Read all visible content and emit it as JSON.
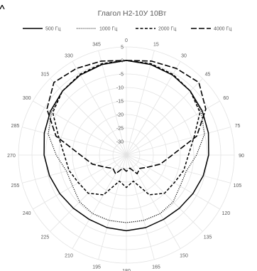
{
  "chart_data": {
    "type": "radar",
    "title": "Глагол Н2-10У 10Вт",
    "angle_labels": [
      "0",
      "15",
      "30",
      "45",
      "60",
      "75",
      "90",
      "105",
      "120",
      "135",
      "150",
      "165",
      "180",
      "195",
      "210",
      "225",
      "240",
      "255",
      "270",
      "285",
      "300",
      "315",
      "330",
      "345"
    ],
    "radial_ticks": [
      "5",
      "0",
      "-5",
      "-10",
      "-15",
      "-20",
      "-25",
      "-30"
    ],
    "r_range": [
      -35,
      5
    ],
    "grid": true,
    "legend_position": "top",
    "series": [
      {
        "name": "500 Гц",
        "line_style": "solid",
        "color": "#000000",
        "values": [
          0,
          -0.3,
          -0.8,
          -1.5,
          -2.5,
          -3.5,
          -4.5,
          -5.5,
          -6.5,
          -7.2,
          -7.5,
          -7.2,
          -7.0,
          -7.2,
          -7.5,
          -7.2,
          -6.5,
          -5.5,
          -4.5,
          -3.5,
          -2.5,
          -1.5,
          -0.8,
          -0.3
        ]
      },
      {
        "name": "1000 Гц",
        "line_style": "dotted",
        "color": "#000000",
        "values": [
          0,
          -0.3,
          -0.8,
          -1.5,
          -3,
          -5,
          -9,
          -12,
          -12,
          -10.5,
          -10,
          -10,
          -10,
          -10,
          -10,
          -10.5,
          -12,
          -12,
          -9,
          -5,
          -3,
          -1.5,
          -0.8,
          -0.3
        ]
      },
      {
        "name": "2000 Гц",
        "line_style": "dashed",
        "color": "#000000",
        "values": [
          0,
          0,
          -0.5,
          -1.5,
          -3.5,
          -9,
          -12,
          -13,
          -14.5,
          -15,
          -18,
          -25,
          -23,
          -25,
          -18,
          -15,
          -14.5,
          -13,
          -12,
          -9,
          -3.5,
          -1.5,
          -0.5,
          0
        ]
      },
      {
        "name": "4000 Гц",
        "line_style": "long-dash",
        "color": "#000000",
        "values": [
          0,
          1,
          2,
          3,
          -1,
          -8,
          -18,
          -22,
          -26,
          -28,
          -27,
          -30,
          -29,
          -30,
          -27,
          -28,
          -26,
          -22,
          -18,
          -8,
          -1,
          3,
          2,
          1
        ]
      }
    ]
  }
}
